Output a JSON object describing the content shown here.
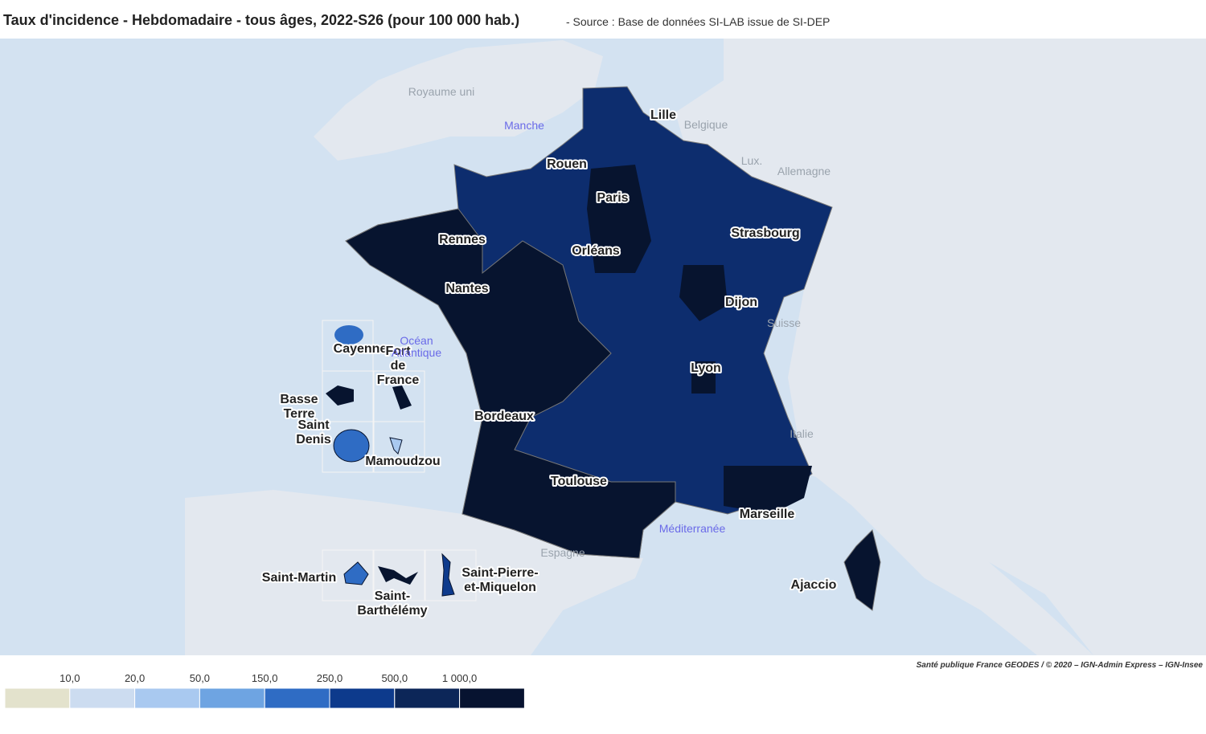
{
  "header": {
    "title": "Taux d'incidence - Hebdomadaire - tous âges, 2022-S26 (pour 100 000 hab.)",
    "source": "- Source : Base de données SI-LAB issue de SI-DEP"
  },
  "map": {
    "cities": [
      [
        "Lille"
      ],
      [
        "Rouen"
      ],
      [
        "Paris"
      ],
      [
        "Rennes"
      ],
      [
        "Orléans"
      ],
      [
        "Strasbourg"
      ],
      [
        "Nantes"
      ],
      [
        "Dijon"
      ],
      [
        "Lyon"
      ],
      [
        "Bordeaux"
      ],
      [
        "Toulouse"
      ],
      [
        "Marseille"
      ],
      [
        "Ajaccio"
      ],
      [
        "Cayenne"
      ],
      [
        "Fort",
        "de",
        "France"
      ],
      [
        "Basse",
        "Terre"
      ],
      [
        "Saint",
        "Denis"
      ],
      [
        "Mamoudzou"
      ],
      [
        "Saint-Martin"
      ],
      [
        "Saint-",
        "Barthélémy"
      ],
      [
        "Saint-Pierre-",
        "et-Miquelon"
      ]
    ],
    "countries": [
      "Royaume uni",
      "Belgique",
      "Lux.",
      "Allemagne",
      "Suisse",
      "Italie",
      "Espagne"
    ],
    "seas": [
      [
        "Manche"
      ],
      [
        "Océan",
        "Atlantique"
      ],
      [
        "Méditerranée"
      ]
    ]
  },
  "legend": {
    "ticks": [
      "10,0",
      "20,0",
      "50,0",
      "150,0",
      "250,0",
      "500,0",
      "1 000,0"
    ],
    "colors": [
      "#e3e2cc",
      "#ccdcf0",
      "#a9c9f0",
      "#6ea4e2",
      "#2f6cc4",
      "#0d3a8c",
      "#0c2658",
      "#071330"
    ]
  },
  "attribution": "Santé publique France GEODES / © 2020 – IGN-Admin Express – IGN-Insee"
}
